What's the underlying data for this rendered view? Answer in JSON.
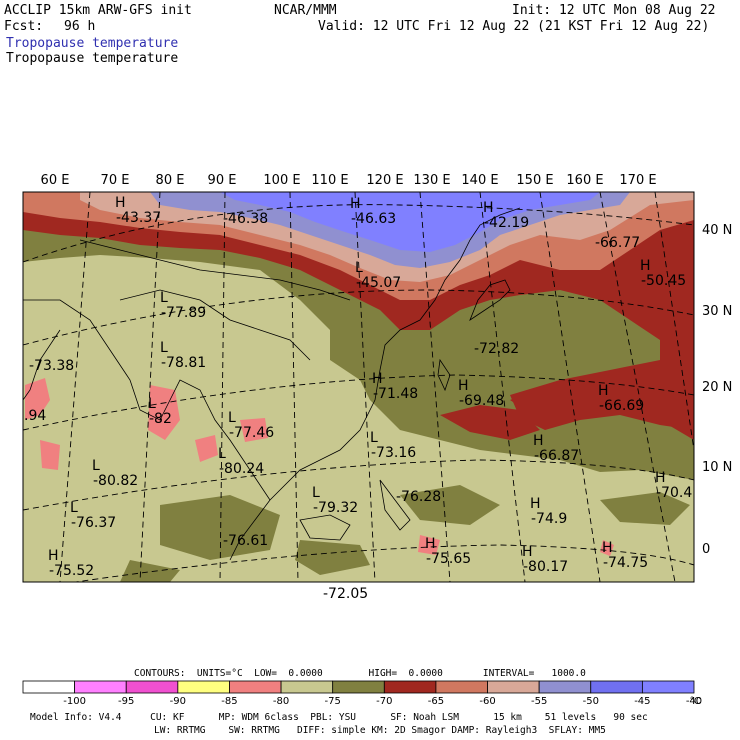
{
  "header": {
    "model": "ACCLIP 15km ARW-GFS init",
    "org": "NCAR/MMM",
    "init": "Init: 12 UTC Mon 08 Aug 22",
    "fcst_label": "Fcst:",
    "fcst_value": "96 h",
    "valid": "Valid: 12 UTC Fri 12 Aug 22 (21 KST Fri 12 Aug 22)",
    "field_colored": "Tropopause temperature",
    "field_black": "Tropopause temperature"
  },
  "map": {
    "lon_labels": [
      "60 E",
      "70 E",
      "80 E",
      "90 E",
      "100 E",
      "110 E",
      "120 E",
      "130 E",
      "140 E",
      "150 E",
      "160 E",
      "170 E"
    ],
    "lat_labels": [
      "40 N",
      "30 N",
      "20 N",
      "10 N",
      "0"
    ],
    "extrema": [
      {
        "mark": "H",
        "value": "-43.37"
      },
      {
        "mark": "",
        "value": "-46.38"
      },
      {
        "mark": "H",
        "value": "-46.63"
      },
      {
        "mark": "H",
        "value": "-42.19"
      },
      {
        "mark": "",
        "value": "-66.77"
      },
      {
        "mark": "H",
        "value": "-50.45"
      },
      {
        "mark": "L",
        "value": "-45.07"
      },
      {
        "mark": "L",
        "value": "-77.89"
      },
      {
        "mark": "",
        "value": "-73.38"
      },
      {
        "mark": "L",
        "value": "-78.81"
      },
      {
        "mark": "L",
        "value": "-82"
      },
      {
        "mark": "",
        "value": ".94"
      },
      {
        "mark": "L",
        "value": "-77.46"
      },
      {
        "mark": "H",
        "value": "-71.48"
      },
      {
        "mark": "H",
        "value": "-69.48"
      },
      {
        "mark": "",
        "value": "-72.82"
      },
      {
        "mark": "H",
        "value": "-66.69"
      },
      {
        "mark": "H",
        "value": "-66.87"
      },
      {
        "mark": "L",
        "value": "-73.16"
      },
      {
        "mark": "L",
        "value": "-80.24"
      },
      {
        "mark": "L",
        "value": "-80.82"
      },
      {
        "mark": "L",
        "value": "-76.37"
      },
      {
        "mark": "L",
        "value": "-79.32"
      },
      {
        "mark": "",
        "value": "-76.28"
      },
      {
        "mark": "H",
        "value": "-74.9"
      },
      {
        "mark": "H",
        "value": "-70.4"
      },
      {
        "mark": "",
        "value": "-76.61"
      },
      {
        "mark": "H",
        "value": "-75.52"
      },
      {
        "mark": "H",
        "value": "-75.65"
      },
      {
        "mark": "H",
        "value": "-80.17"
      },
      {
        "mark": "H",
        "value": "-74.75"
      },
      {
        "mark": "",
        "value": "-72.05"
      }
    ]
  },
  "contours_info": "CONTOURS:  UNITS=°C  LOW=  0.0000        HIGH=  0.0000       INTERVAL=   1000.0",
  "colorbar": {
    "colors": [
      "#ffffff",
      "#ff80ff",
      "#f050d0",
      "#ffff80",
      "#f08080",
      "#c8c890",
      "#808040",
      "#a02820",
      "#d07860",
      "#d8a898",
      "#9090d0",
      "#7070f0",
      "#8080ff"
    ],
    "tick_labels": [
      "-100",
      "-95",
      "-90",
      "-85",
      "-80",
      "-75",
      "-70",
      "-65",
      "-60",
      "-55",
      "-50",
      "-45",
      "-40"
    ],
    "unit": "°C"
  },
  "footer": {
    "line1": "Model Info: V4.4     CU: KF      MP: WDM 6class  PBL: YSU      SF: Noah LSM      15 km    51 levels   90 sec",
    "line2": "LW: RRTMG    SW: RRTMG   DIFF: simple KM: 2D Smagor DAMP: Rayleigh3  SFLAY: MM5"
  }
}
